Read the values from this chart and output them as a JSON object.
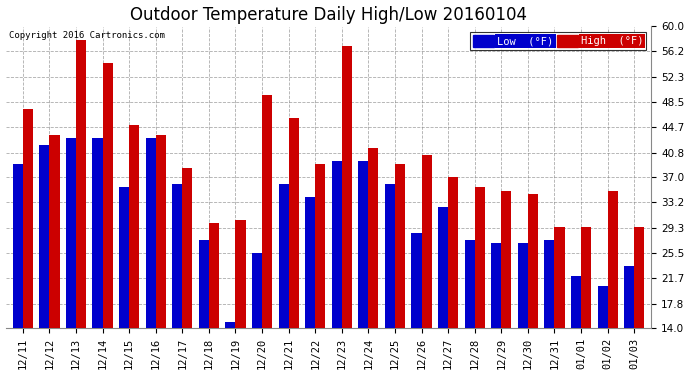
{
  "title": "Outdoor Temperature Daily High/Low 20160104",
  "copyright": "Copyright 2016 Cartronics.com",
  "legend_low": "Low  (°F)",
  "legend_high": "High  (°F)",
  "categories": [
    "12/11",
    "12/12",
    "12/13",
    "12/14",
    "12/15",
    "12/16",
    "12/17",
    "12/18",
    "12/19",
    "12/20",
    "12/21",
    "12/22",
    "12/23",
    "12/24",
    "12/25",
    "12/26",
    "12/27",
    "12/28",
    "12/29",
    "12/30",
    "12/31",
    "01/01",
    "01/02",
    "01/03"
  ],
  "low_values": [
    39.0,
    42.0,
    43.0,
    43.0,
    35.5,
    43.0,
    36.0,
    27.5,
    15.0,
    25.5,
    36.0,
    34.0,
    39.5,
    39.5,
    36.0,
    28.5,
    32.5,
    27.5,
    27.0,
    27.0,
    27.5,
    22.0,
    20.5,
    23.5
  ],
  "high_values": [
    47.5,
    43.5,
    58.0,
    54.5,
    45.0,
    43.5,
    38.5,
    30.0,
    30.5,
    49.5,
    46.0,
    39.0,
    57.0,
    41.5,
    39.0,
    40.5,
    37.0,
    35.5,
    35.0,
    34.5,
    29.5,
    29.5,
    35.0,
    29.5
  ],
  "ymin": 14.0,
  "ymax": 60.0,
  "yticks": [
    14.0,
    17.8,
    21.7,
    25.5,
    29.3,
    33.2,
    37.0,
    40.8,
    44.7,
    48.5,
    52.3,
    56.2,
    60.0
  ],
  "low_color": "#0000cc",
  "high_color": "#cc0000",
  "bg_color": "#ffffff",
  "grid_color": "#888888",
  "title_fontsize": 12,
  "tick_fontsize": 7.5,
  "bar_width": 0.38
}
